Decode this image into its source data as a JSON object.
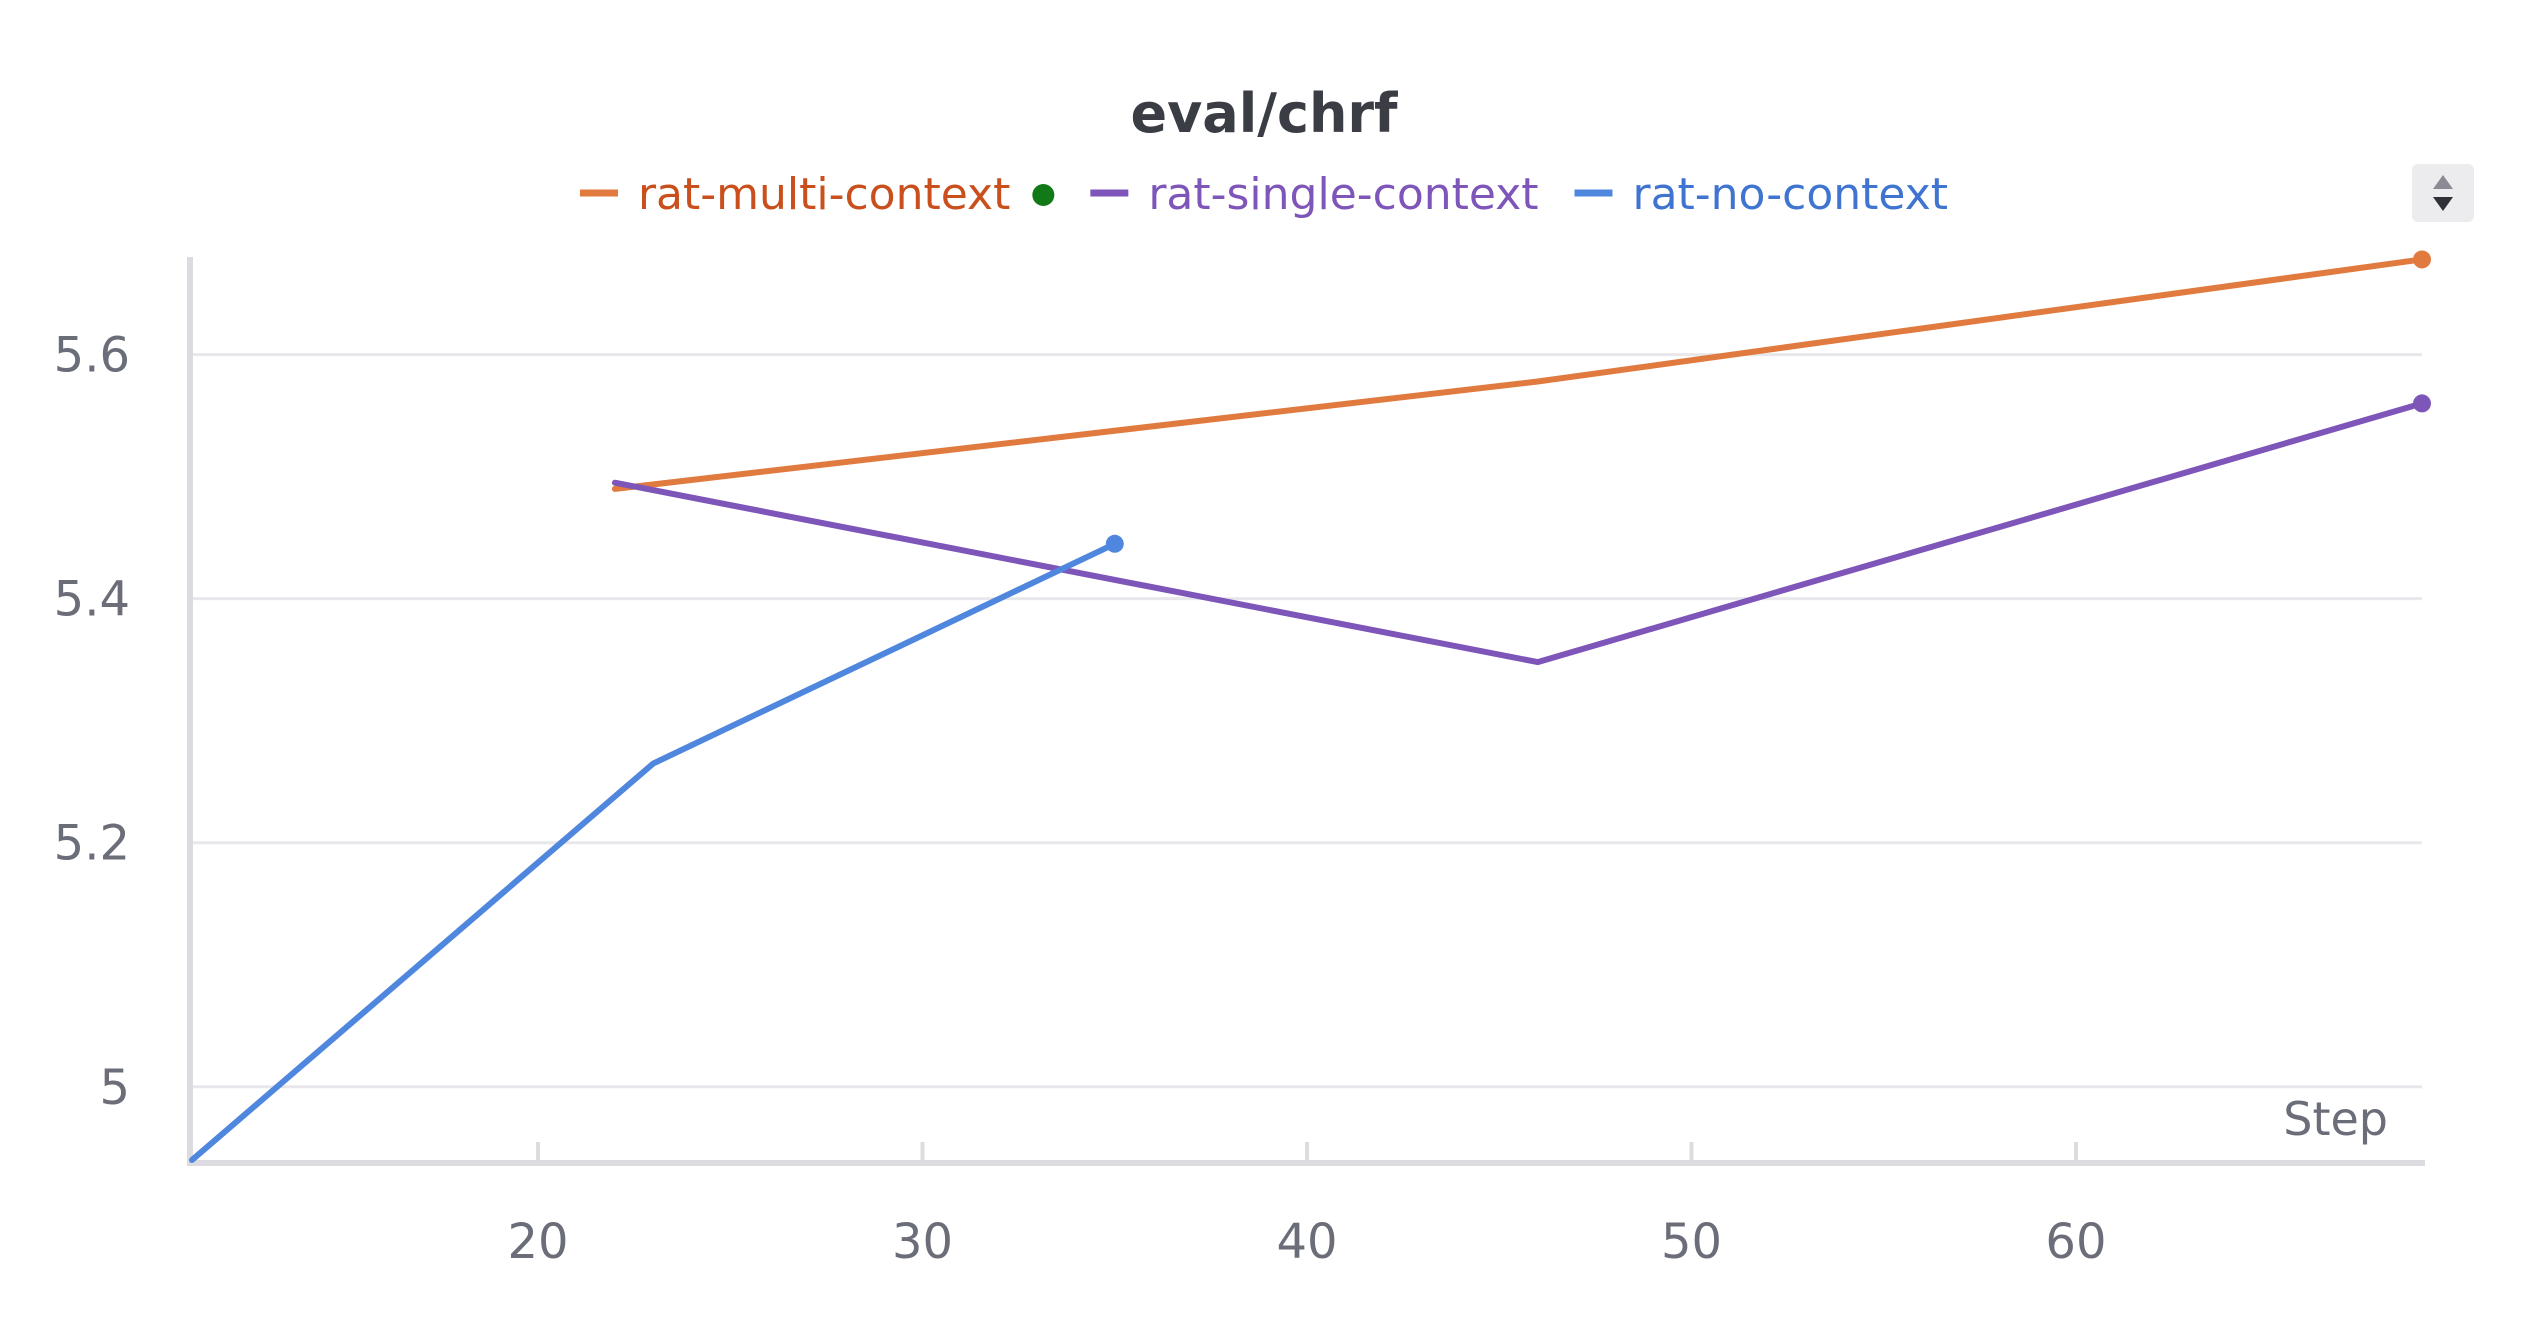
{
  "chart_data": {
    "type": "line",
    "title": "eval/chrf",
    "xlabel": "Step",
    "ylabel": "",
    "xlim": [
      11,
      69
    ],
    "ylim": [
      4.94,
      5.68
    ],
    "xticks": [
      20,
      30,
      40,
      50,
      60
    ],
    "yticks": [
      5,
      5.2,
      5.4,
      5.6
    ],
    "x_tick_labels": [
      "20",
      "30",
      "40",
      "50",
      "60"
    ],
    "y_tick_labels": [
      "5",
      "5.2",
      "5.4",
      "5.6"
    ],
    "grid": "horizontal",
    "legend_position": "top",
    "series": [
      {
        "name": "rat-multi-context",
        "color": "#e07a3f",
        "label_color": "#c9501c",
        "status_dot_color": "#117a17",
        "x": [
          22,
          46,
          69
        ],
        "y": [
          5.49,
          5.578,
          5.678
        ]
      },
      {
        "name": "rat-single-context",
        "color": "#7e55b8",
        "label_color": "#7e55b8",
        "x": [
          22,
          46,
          69
        ],
        "y": [
          5.495,
          5.348,
          5.56
        ]
      },
      {
        "name": "rat-no-context",
        "color": "#5087de",
        "label_color": "#3f74d0",
        "x": [
          11,
          23,
          35
        ],
        "y": [
          4.94,
          5.265,
          5.445
        ]
      }
    ]
  },
  "legend_scroll": {
    "up_icon": "triangle-up-icon",
    "down_icon": "triangle-down-icon"
  }
}
